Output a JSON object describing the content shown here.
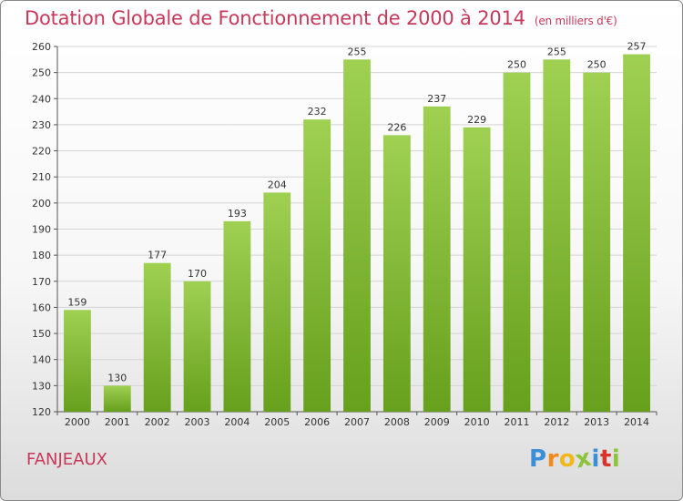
{
  "header": {
    "title": "Dotation Globale de Fonctionnement de 2000 à 2014",
    "unit": "(en milliers d'€)"
  },
  "commune": "FANJEAUX",
  "logo": {
    "letters": [
      "P",
      "r",
      "o",
      "x",
      "i",
      "t",
      "i"
    ],
    "colors": [
      "#3b8fd6",
      "#f08a1c",
      "#f0b81c",
      "#8cc43c",
      "#3b8fd6",
      "#d6342c",
      "#8cc43c"
    ]
  },
  "colors": {
    "bar_light": "#9fd052",
    "bar_dark": "#66a01c",
    "title": "#c8385a"
  },
  "chart_data": {
    "type": "bar",
    "categories": [
      "2000",
      "2001",
      "2002",
      "2003",
      "2004",
      "2005",
      "2006",
      "2007",
      "2008",
      "2009",
      "2010",
      "2011",
      "2012",
      "2013",
      "2014"
    ],
    "values": [
      159,
      130,
      177,
      170,
      193,
      204,
      232,
      255,
      226,
      237,
      229,
      250,
      255,
      250,
      257
    ],
    "ylim": [
      120,
      260
    ],
    "yticks": [
      120,
      130,
      140,
      150,
      160,
      170,
      180,
      190,
      200,
      210,
      220,
      230,
      240,
      250,
      260
    ],
    "grid": true,
    "title": "Dotation Globale de Fonctionnement de 2000 à 2014",
    "unit": "(en milliers d'€)"
  }
}
